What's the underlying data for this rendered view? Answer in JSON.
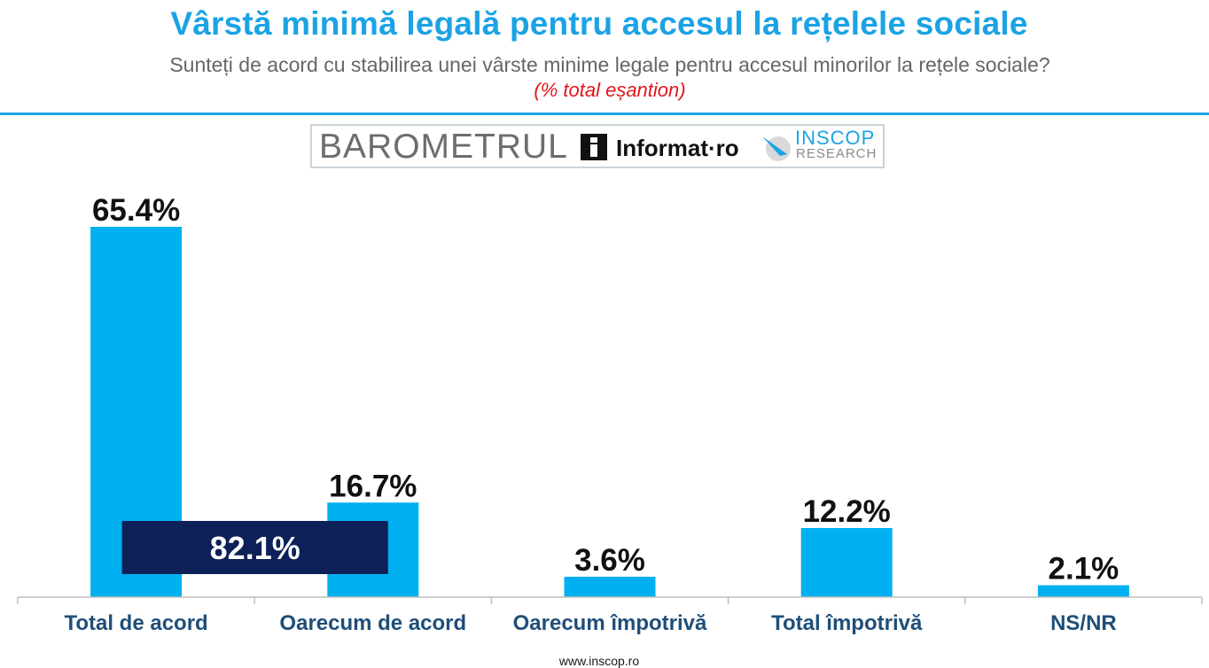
{
  "header": {
    "title": "Vârstă minimă legală pentru accesul la rețelele sociale",
    "subtitle": "Sunteți de acord cu stabilirea unei vârste minime legale pentru accesul minorilor la rețele sociale?",
    "note": "(% total eșantion)"
  },
  "logo": {
    "barometrul": "BAROMETRUL",
    "informat": "Informat·ro",
    "inscop": "INSCOP",
    "research": "RESEARCH",
    "informat_icon": "info-i-icon",
    "inscop_icon": "inscop-swoosh-icon"
  },
  "colors": {
    "bar": "#00b0f0",
    "total_box": "#0d2158",
    "title": "#1ba3e4",
    "note": "#e0171c",
    "category_label": "#1f4e79",
    "axis": "#bfbfbf"
  },
  "chart_data": {
    "type": "bar",
    "categories": [
      "Total de acord",
      "Oarecum de acord",
      "Oarecum împotrivă",
      "Total împotrivă",
      "NS/NR"
    ],
    "values": [
      65.4,
      16.7,
      3.6,
      12.2,
      2.1
    ],
    "value_labels": [
      "65.4%",
      "16.7%",
      "3.6%",
      "12.2%",
      "2.1%"
    ],
    "annotations": [
      {
        "text": "82.1%",
        "spans_categories": [
          "Total de acord",
          "Oarecum de acord"
        ]
      }
    ],
    "ylim": [
      0,
      65.4
    ],
    "grid": false
  },
  "footer": {
    "url": "www.inscop.ro"
  }
}
